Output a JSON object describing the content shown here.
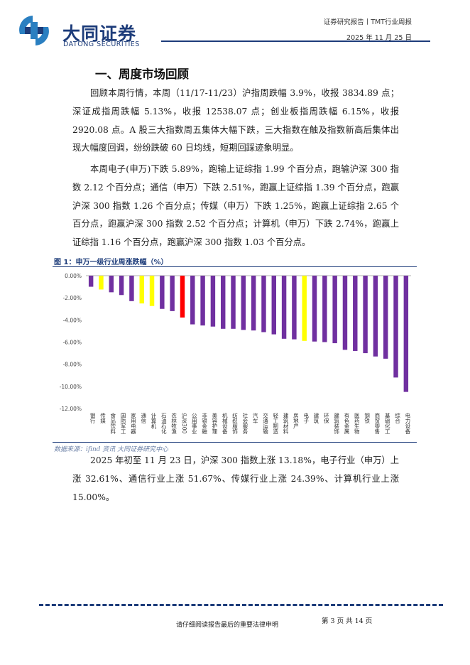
{
  "header": {
    "logo_cn": "大同证券",
    "logo_en": "DATONG SECURITIES",
    "report_type": "证券研究报告丨TMT行业周报",
    "date": "2025 年 11 月 25 日"
  },
  "section_title": "一、周度市场回顾",
  "paragraphs": {
    "p1": "回顾本周行情，本周（11/17-11/23）沪指周跌幅 3.9%，收报 3834.89 点；深证成指周跌幅 5.13%，收报 12538.07 点；创业板指周跌幅 6.15%，收报 2920.08 点。A 股三大指数周五集体大幅下跌，三大指数在触及指数新高后集体出现大幅度回调，纷纷跌破 60 日均线，短期回踩迹象明显。",
    "p2": "本周电子(申万)下跌 5.89%，跑输上证综指 1.99 个百分点，跑输沪深 300 指数 2.12 个百分点；通信（申万）下跌 2.51%，跑赢上证综指 1.39 个百分点，跑赢沪深 300 指数 1.26 个百分点；传媒（申万）下跌 1.25%，跑赢上证综指 2.65 个百分点，跑赢沪深 300 指数 2.52 个百分点；计算机（申万）下跌 2.74%，跑赢上证综指 1.16 个百分点，跑赢沪深 300 指数 1.03 个百分点。",
    "p3": "2025 年初至 11 月 23 日，沪深 300 指数上涨 13.18%，电子行业（申万）上涨 32.61%、通信行业上涨 51.67%、传媒行业上涨 24.39%、计算机行业上涨 15.00%。"
  },
  "figure": {
    "title": "图 1：申万一级行业周涨跌幅（%）",
    "source": "数据来源：ifind 资讯 大同证券研究中心"
  },
  "chart_data": {
    "type": "bar",
    "categories": [
      "银行",
      "传媒",
      "食品饮料",
      "国防军工",
      "家用电器",
      "通信",
      "计算机",
      "石油石化",
      "农林牧渔",
      "沪深300",
      "公用事业",
      "非银金融",
      "美容护理",
      "机械设备",
      "纺织服饰",
      "社会服务",
      "汽车",
      "交通运输",
      "轻工制造",
      "建筑材料",
      "房地产",
      "电子",
      "建筑",
      "环保",
      "建筑装饰",
      "有色金属",
      "医药生物",
      "钢铁",
      "商贸零售",
      "基础化工",
      "综合",
      "电力设备"
    ],
    "values": [
      -1.0,
      -1.25,
      -1.5,
      -1.75,
      -2.3,
      -2.51,
      -2.74,
      -3.0,
      -3.2,
      -3.78,
      -4.4,
      -4.5,
      -4.6,
      -4.8,
      -4.8,
      -4.9,
      -4.95,
      -5.1,
      -5.3,
      -5.7,
      -5.75,
      -5.89,
      -5.95,
      -6.0,
      -6.1,
      -6.7,
      -6.8,
      -7.0,
      -7.3,
      -7.5,
      -9.2,
      -10.5
    ],
    "highlight": {
      "通信": "#ffff00",
      "传媒": "#ffff00",
      "计算机": "#ffff00",
      "电子": "#ffff00",
      "沪深300": "#ff0000"
    },
    "default_color": "#7030a0",
    "ylim": [
      -12,
      0
    ],
    "yticks": [
      "0.00%",
      "-2.00%",
      "-4.00%",
      "-6.00%",
      "-8.00%",
      "-10.00%",
      "-12.00%"
    ],
    "grid": false,
    "legend": "none"
  },
  "footer": {
    "disclaimer": "请仔细阅读报告最后的重要法律申明",
    "page": "第 3 页 共 14 页"
  }
}
